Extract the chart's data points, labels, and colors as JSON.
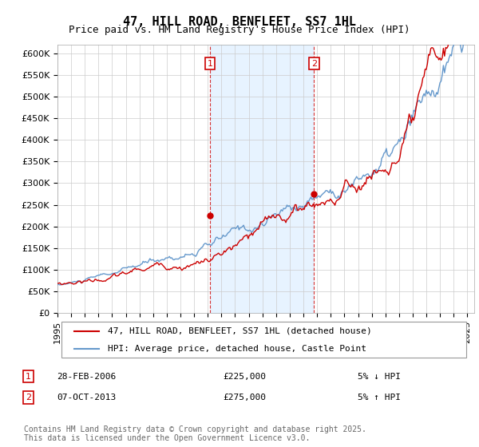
{
  "title": "47, HILL ROAD, BENFLEET, SS7 1HL",
  "subtitle": "Price paid vs. HM Land Registry's House Price Index (HPI)",
  "ylabel_ticks": [
    "£0",
    "£50K",
    "£100K",
    "£150K",
    "£200K",
    "£250K",
    "£300K",
    "£350K",
    "£400K",
    "£450K",
    "£500K",
    "£550K",
    "£600K"
  ],
  "ytick_values": [
    0,
    50000,
    100000,
    150000,
    200000,
    250000,
    300000,
    350000,
    400000,
    450000,
    500000,
    550000,
    600000
  ],
  "ylim": [
    0,
    620000
  ],
  "xlim_start": 1995.0,
  "xlim_end": 2025.5,
  "sale1_x": 2006.16,
  "sale1_y": 225000,
  "sale1_label": "1",
  "sale1_date": "28-FEB-2006",
  "sale1_price": "£225,000",
  "sale1_note": "5% ↓ HPI",
  "sale2_x": 2013.77,
  "sale2_y": 275000,
  "sale2_label": "2",
  "sale2_date": "07-OCT-2013",
  "sale2_price": "£275,000",
  "sale2_note": "5% ↑ HPI",
  "line1_color": "#cc0000",
  "line2_color": "#6699cc",
  "shade_color": "#ddeeff",
  "grid_color": "#cccccc",
  "sale_marker_color": "#cc0000",
  "sale_box_color": "#cc0000",
  "legend1_label": "47, HILL ROAD, BENFLEET, SS7 1HL (detached house)",
  "legend2_label": "HPI: Average price, detached house, Castle Point",
  "footnote": "Contains HM Land Registry data © Crown copyright and database right 2025.\nThis data is licensed under the Open Government Licence v3.0.",
  "title_fontsize": 11,
  "subtitle_fontsize": 9,
  "tick_fontsize": 8,
  "legend_fontsize": 8,
  "footnote_fontsize": 7
}
